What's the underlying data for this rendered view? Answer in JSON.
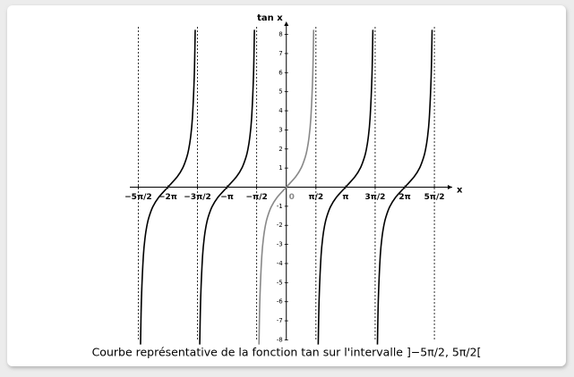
{
  "chart_data": {
    "type": "line",
    "caption": "Courbe représentative de la fonction tan sur l'intervalle ]−5π/2, 5π/2[",
    "x_label": "x",
    "y_label": "tan x",
    "xlim": [
      -8.3,
      8.8
    ],
    "ylim": [
      -8.4,
      8.4
    ],
    "xticks": [
      {
        "value": -7.854,
        "label": "−5π/2"
      },
      {
        "value": -6.283,
        "label": "−2π"
      },
      {
        "value": -4.712,
        "label": "−3π/2"
      },
      {
        "value": -3.142,
        "label": "−π"
      },
      {
        "value": -1.571,
        "label": "−π/2"
      },
      0,
      {
        "value": 1.571,
        "label": "π/2"
      },
      {
        "value": 3.142,
        "label": "π"
      },
      {
        "value": 4.712,
        "label": "3π/2"
      },
      {
        "value": 6.283,
        "label": "2π"
      },
      {
        "value": 7.854,
        "label": "5π/2"
      }
    ],
    "yticks": [
      -8,
      -7,
      -6,
      -5,
      -4,
      -3,
      -2,
      -1,
      1,
      2,
      3,
      4,
      5,
      6,
      7,
      8
    ],
    "asymptotes": [
      -7.854,
      -4.712,
      -1.571,
      1.571,
      4.712,
      7.854
    ],
    "series": [
      {
        "color": "#000000",
        "x": [
          -7.733,
          -7.683,
          -7.583,
          -7.483,
          -7.383,
          -7.283,
          -7.083,
          -6.783,
          -6.283,
          -5.783,
          -5.483,
          -5.283,
          -5.183,
          -5.083,
          -4.983,
          -4.883,
          -4.833
        ],
        "values": [
          -8.24,
          -5.8,
          -3.6,
          -2.57,
          -1.96,
          -1.56,
          -1.03,
          -0.55,
          0,
          0.55,
          1.03,
          1.56,
          1.96,
          2.57,
          3.6,
          5.8,
          8.24
        ]
      },
      {
        "color": "#000000",
        "x": [
          -4.592,
          -4.542,
          -4.442,
          -4.342,
          -4.242,
          -4.142,
          -3.942,
          -3.642,
          -3.142,
          -2.642,
          -2.342,
          -2.142,
          -2.042,
          -1.942,
          -1.842,
          -1.742,
          -1.692
        ],
        "values": [
          -8.24,
          -5.8,
          -3.6,
          -2.57,
          -1.96,
          -1.56,
          -1.03,
          -0.55,
          0,
          0.55,
          1.03,
          1.56,
          1.96,
          2.57,
          3.6,
          5.8,
          8.24
        ]
      },
      {
        "color": "#888888",
        "x": [
          -1.45,
          -1.4,
          -1.3,
          -1.2,
          -1.1,
          -1.0,
          -0.8,
          -0.5,
          0,
          0.5,
          0.8,
          1.0,
          1.1,
          1.2,
          1.3,
          1.4,
          1.45
        ],
        "values": [
          -8.24,
          -5.8,
          -3.6,
          -2.57,
          -1.96,
          -1.56,
          -1.03,
          -0.55,
          0,
          0.55,
          1.03,
          1.56,
          1.96,
          2.57,
          3.6,
          5.8,
          8.24
        ]
      },
      {
        "color": "#000000",
        "x": [
          1.692,
          1.742,
          1.842,
          1.942,
          2.042,
          2.142,
          2.342,
          2.642,
          3.142,
          3.642,
          3.942,
          4.142,
          4.242,
          4.342,
          4.442,
          4.542,
          4.592
        ],
        "values": [
          -8.24,
          -5.8,
          -3.6,
          -2.57,
          -1.96,
          -1.56,
          -1.03,
          -0.55,
          0,
          0.55,
          1.03,
          1.56,
          1.96,
          2.57,
          3.6,
          5.8,
          8.24
        ]
      },
      {
        "color": "#000000",
        "x": [
          4.833,
          4.883,
          4.983,
          5.083,
          5.183,
          5.283,
          5.483,
          5.783,
          6.283,
          6.783,
          7.083,
          7.283,
          7.383,
          7.483,
          7.583,
          7.683,
          7.733
        ],
        "values": [
          -8.24,
          -5.8,
          -3.6,
          -2.57,
          -1.96,
          -1.56,
          -1.03,
          -0.55,
          0,
          0.55,
          1.03,
          1.56,
          1.96,
          2.57,
          3.6,
          5.8,
          8.24
        ]
      }
    ]
  }
}
